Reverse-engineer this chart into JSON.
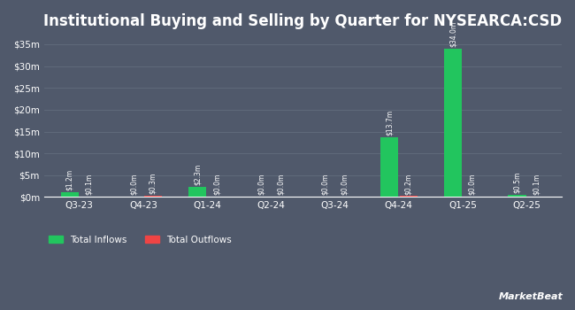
{
  "title": "Institutional Buying and Selling by Quarter for NYSEARCA:CSD",
  "quarters": [
    "Q3-23",
    "Q4-23",
    "Q1-24",
    "Q2-24",
    "Q3-24",
    "Q4-24",
    "Q1-25",
    "Q2-25"
  ],
  "inflows": [
    1.2,
    0.0,
    2.3,
    0.0,
    0.0,
    13.7,
    34.0,
    0.5
  ],
  "outflows": [
    0.1,
    0.3,
    0.0,
    0.0,
    0.0,
    0.2,
    0.0,
    0.1
  ],
  "inflow_labels": [
    "$1.2m",
    "$0.0m",
    "$2.3m",
    "$0.0m",
    "$0.0m",
    "$13.7m",
    "$34.0m",
    "$0.5m"
  ],
  "outflow_labels": [
    "$0.1m",
    "$0.3m",
    "$0.0m",
    "$0.0m",
    "$0.0m",
    "$0.2m",
    "$0.0m",
    "$0.1m"
  ],
  "inflow_color": "#22c55e",
  "outflow_color": "#ef4444",
  "background_color": "#50596b",
  "plot_bg_color": "#50596b",
  "text_color": "#ffffff",
  "grid_color": "#626d7e",
  "title_fontsize": 12,
  "ylim": [
    0,
    37
  ],
  "yticks": [
    0,
    5,
    10,
    15,
    20,
    25,
    30,
    35
  ],
  "ytick_labels": [
    "$0m",
    "$5m",
    "$10m",
    "$15m",
    "$20m",
    "$25m",
    "$30m",
    "$35m"
  ],
  "bar_width": 0.28,
  "legend_labels": [
    "Total Inflows",
    "Total Outflows"
  ],
  "watermark": "MarketBeat"
}
